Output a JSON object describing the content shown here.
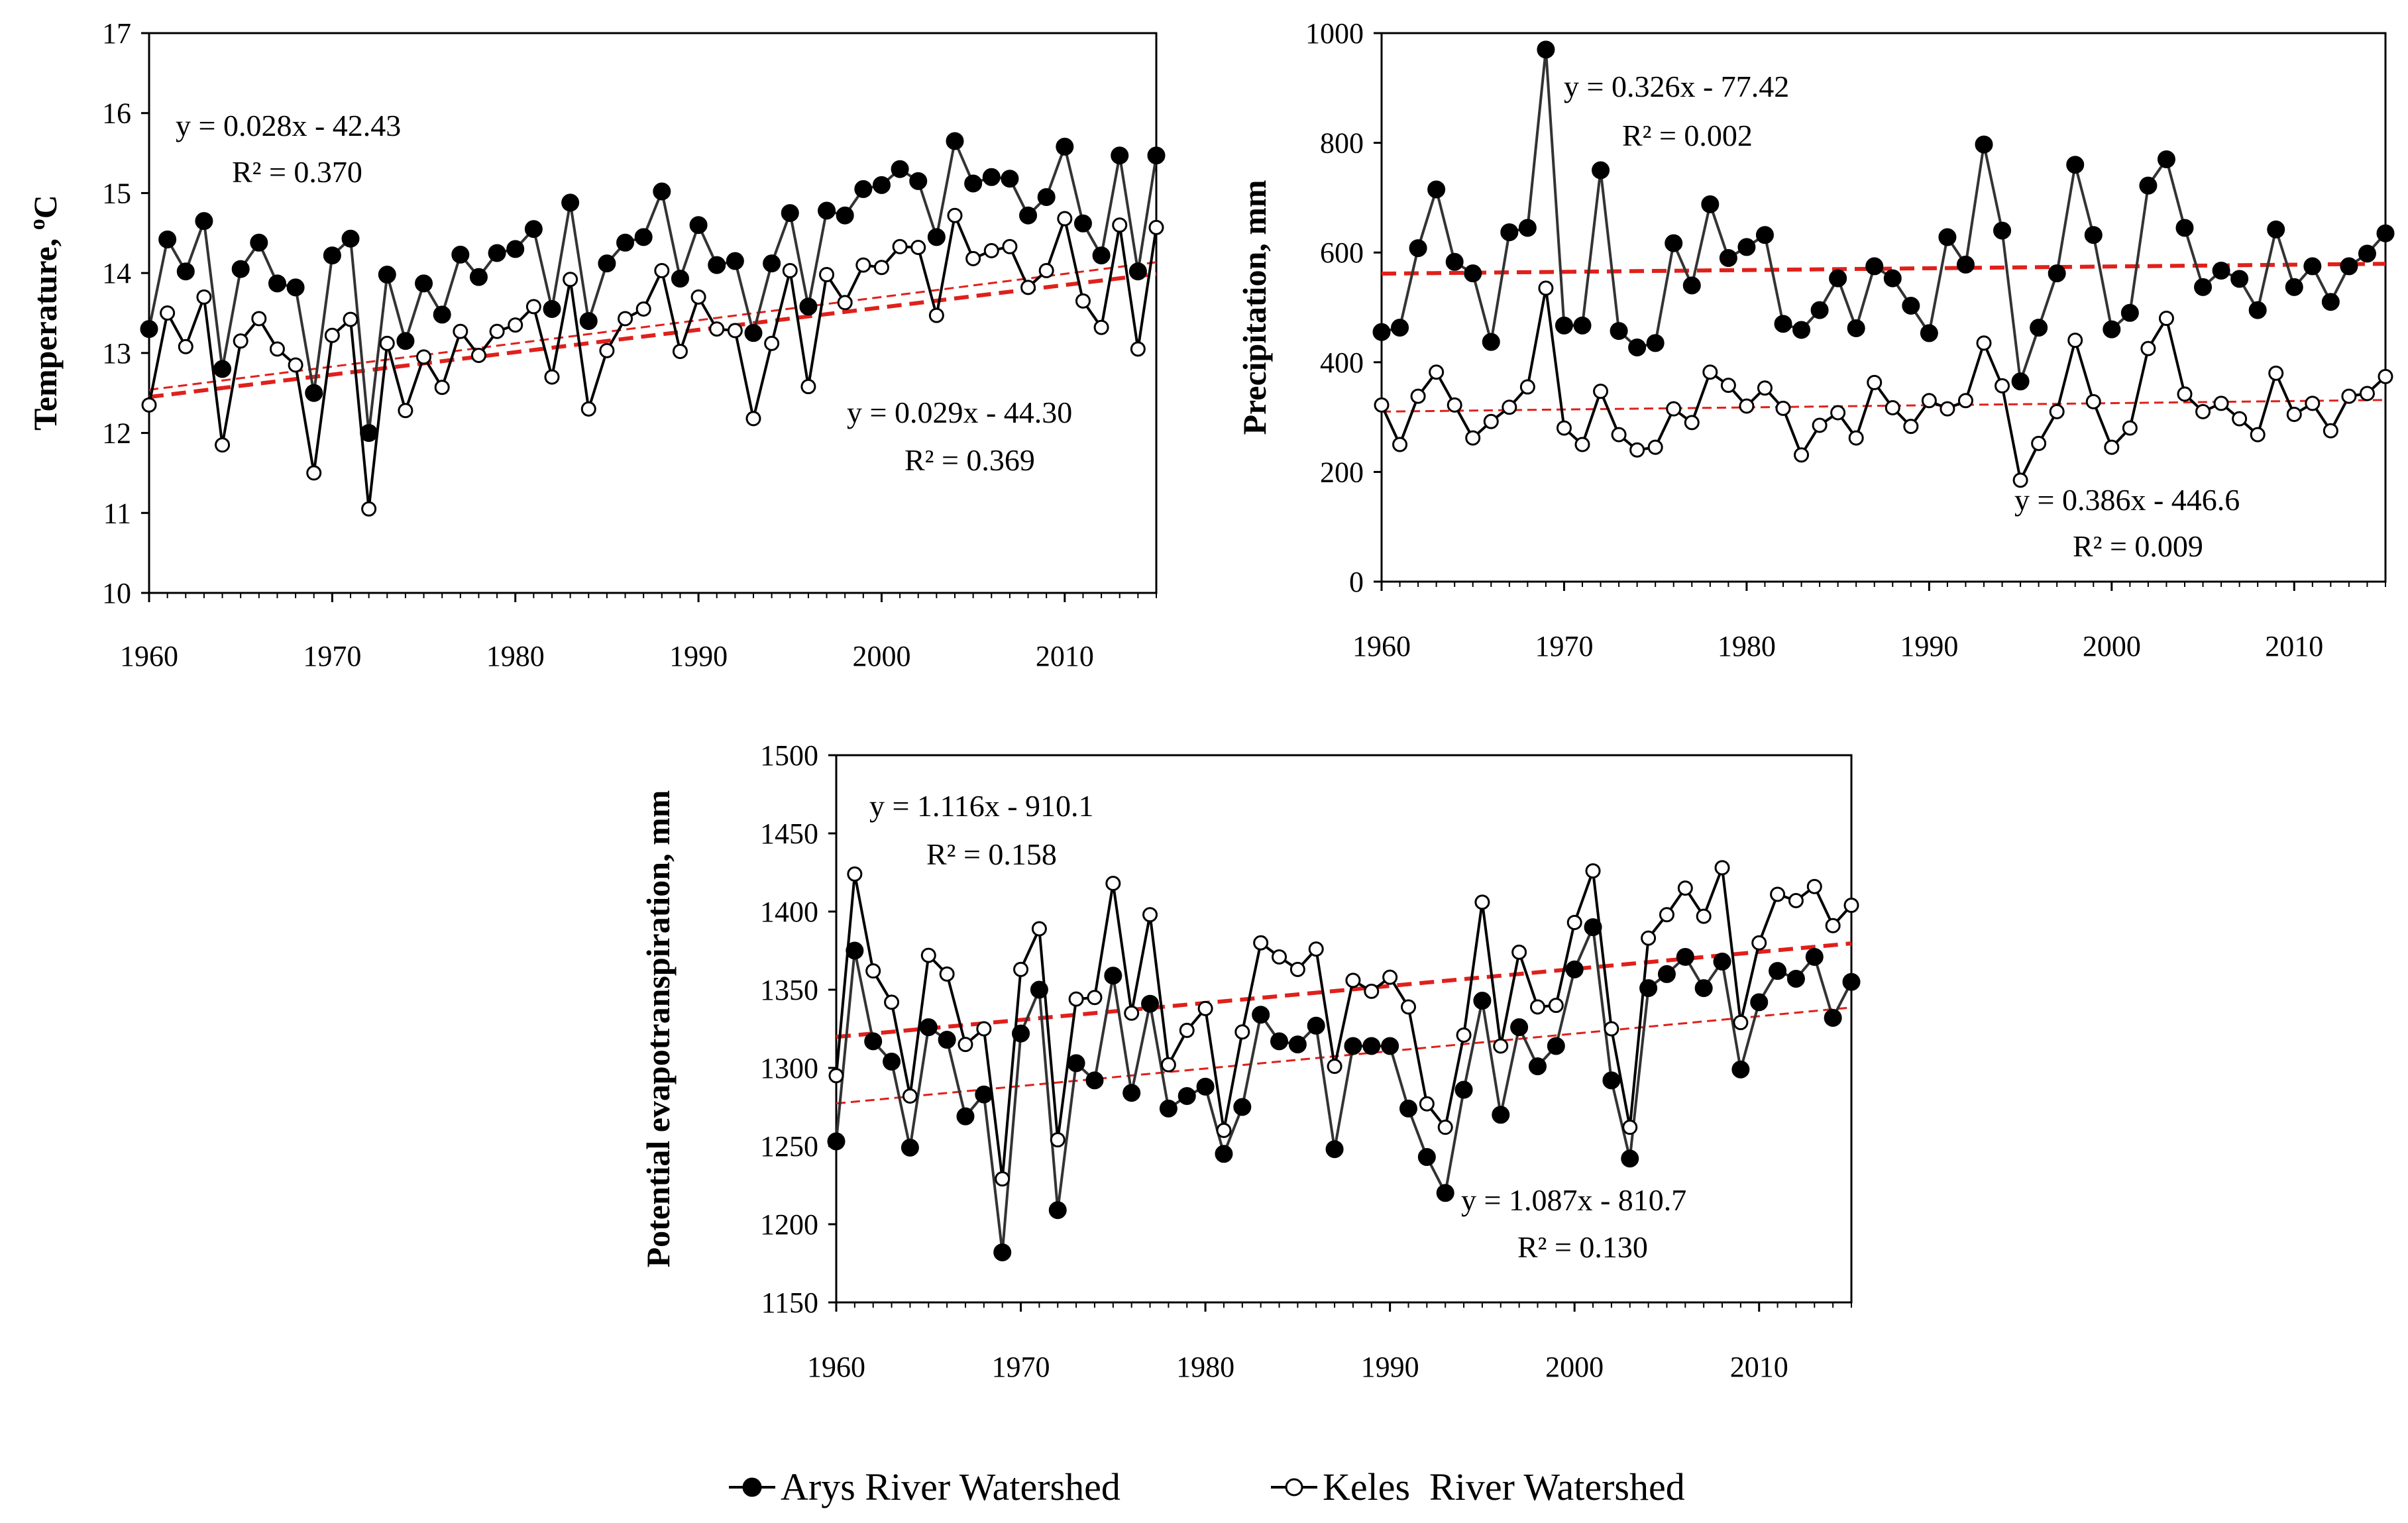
{
  "chart_data": [
    {
      "type": "line",
      "id": "temperature",
      "ylabel": "Temperature, °C",
      "ylabel_base": "Temperature, ",
      "ylabel_sup": "o",
      "ylabel_unit": "C",
      "xlim": [
        1960,
        2015
      ],
      "ylim": [
        10,
        17
      ],
      "xticks": [
        1960,
        1970,
        1980,
        1990,
        2000,
        2010
      ],
      "yticks": [
        10,
        11,
        12,
        13,
        14,
        15,
        16,
        17
      ],
      "x_start": 1960,
      "series": [
        {
          "name": "Arys River Watershed",
          "marker": "filled",
          "values": [
            13.3,
            14.42,
            14.02,
            14.65,
            12.8,
            14.05,
            14.38,
            13.87,
            13.82,
            12.5,
            14.22,
            14.43,
            12.0,
            13.98,
            13.15,
            13.87,
            13.48,
            14.23,
            13.95,
            14.25,
            14.3,
            14.55,
            13.55,
            14.88,
            13.4,
            14.12,
            14.38,
            14.45,
            15.02,
            13.93,
            14.6,
            14.1,
            14.15,
            13.25,
            14.12,
            14.75,
            13.58,
            14.78,
            14.72,
            15.05,
            15.1,
            15.3,
            15.15,
            14.45,
            15.65,
            15.12,
            15.2,
            15.18,
            14.72,
            14.95,
            15.58,
            14.62,
            14.22,
            15.47,
            14.02,
            15.47
          ]
        },
        {
          "name": "Keles  River Watershed",
          "marker": "open",
          "values": [
            12.35,
            13.5,
            13.08,
            13.7,
            11.85,
            13.15,
            13.43,
            13.05,
            12.85,
            11.5,
            13.22,
            13.42,
            11.05,
            13.12,
            12.28,
            12.95,
            12.57,
            13.27,
            12.97,
            13.27,
            13.35,
            13.58,
            12.7,
            13.92,
            12.3,
            13.03,
            13.43,
            13.55,
            14.03,
            13.02,
            13.7,
            13.3,
            13.28,
            12.18,
            13.12,
            14.03,
            12.58,
            13.98,
            13.63,
            14.1,
            14.07,
            14.33,
            14.32,
            13.47,
            14.72,
            14.18,
            14.28,
            14.33,
            13.82,
            14.03,
            14.68,
            13.65,
            13.32,
            14.6,
            13.05,
            14.57
          ]
        }
      ],
      "trendlines": [
        {
          "series": "Arys River Watershed",
          "slope": 0.028,
          "intercept": -42.43,
          "style": "thick-dashed"
        },
        {
          "series": "Keles  River Watershed",
          "slope": 0.029,
          "intercept": -44.3,
          "style": "thin-dashed"
        }
      ],
      "annotations": [
        {
          "eq": "y = 0.028x - 42.43",
          "r2": "R² = 0.370"
        },
        {
          "eq": "y = 0.029x - 44.30",
          "r2": "R² = 0.369"
        }
      ]
    },
    {
      "type": "line",
      "id": "precipitation",
      "ylabel": "Precipitation, mm",
      "xlim": [
        1960,
        2015
      ],
      "ylim": [
        0,
        1000
      ],
      "xticks": [
        1960,
        1970,
        1980,
        1990,
        2000,
        2010
      ],
      "yticks": [
        0,
        200,
        400,
        600,
        800,
        1000
      ],
      "x_start": 1960,
      "series": [
        {
          "name": "Arys River Watershed",
          "marker": "filled",
          "values": [
            455,
            463,
            608,
            715,
            583,
            562,
            437,
            637,
            645,
            970,
            467,
            467,
            750,
            457,
            427,
            435,
            617,
            540,
            688,
            590,
            610,
            632,
            470,
            459,
            495,
            553,
            462,
            575,
            553,
            503,
            453,
            628,
            578,
            797,
            640,
            365,
            463,
            562,
            760,
            632,
            460,
            490,
            722,
            770,
            645,
            537,
            567,
            552,
            495,
            642,
            537,
            575,
            510,
            575,
            598,
            635
          ]
        },
        {
          "name": "Keles  River Watershed",
          "marker": "open",
          "values": [
            322,
            250,
            338,
            382,
            322,
            262,
            292,
            318,
            355,
            535,
            280,
            250,
            347,
            268,
            240,
            245,
            315,
            290,
            382,
            358,
            320,
            353,
            316,
            231,
            285,
            308,
            262,
            363,
            317,
            283,
            330,
            315,
            330,
            435,
            357,
            185,
            252,
            310,
            440,
            328,
            245,
            280,
            425,
            480,
            342,
            310,
            325,
            297,
            268,
            380,
            305,
            325,
            275,
            338,
            343,
            374
          ]
        }
      ],
      "trendlines": [
        {
          "series": "Arys River Watershed",
          "slope": 0.326,
          "intercept": -77.42,
          "style": "thick-dashed"
        },
        {
          "series": "Keles  River Watershed",
          "slope": 0.386,
          "intercept": -446.6,
          "style": "thin-dashed"
        }
      ],
      "annotations": [
        {
          "eq": "y = 0.326x - 77.42",
          "r2": "R² = 0.002"
        },
        {
          "eq": "y = 0.386x - 446.6",
          "r2": "R² = 0.009"
        }
      ]
    },
    {
      "type": "line",
      "id": "pet",
      "ylabel": "Potential evapotranspiration, mm",
      "xlim": [
        1960,
        2015
      ],
      "ylim": [
        1150,
        1500
      ],
      "xticks": [
        1960,
        1970,
        1980,
        1990,
        2000,
        2010
      ],
      "yticks": [
        1150,
        1200,
        1250,
        1300,
        1350,
        1400,
        1450,
        1500
      ],
      "x_start": 1960,
      "series": [
        {
          "name": "Arys River Watershed",
          "marker": "filled",
          "values": [
            1253,
            1375,
            1317,
            1304,
            1249,
            1326,
            1318,
            1269,
            1283,
            1182,
            1322,
            1350,
            1209,
            1303,
            1292,
            1359,
            1284,
            1341,
            1274,
            1282,
            1288,
            1245,
            1275,
            1334,
            1317,
            1315,
            1327,
            1248,
            1314,
            1314,
            1314,
            1274,
            1243,
            1220,
            1286,
            1343,
            1270,
            1326,
            1301,
            1314,
            1363,
            1390,
            1292,
            1242,
            1351,
            1360,
            1371,
            1351,
            1368,
            1299,
            1342,
            1362,
            1357,
            1371,
            1332,
            1355
          ]
        },
        {
          "name": "Keles  River Watershed",
          "marker": "open",
          "values": [
            1295,
            1424,
            1362,
            1342,
            1282,
            1372,
            1360,
            1315,
            1325,
            1229,
            1363,
            1389,
            1254,
            1344,
            1345,
            1418,
            1335,
            1398,
            1302,
            1324,
            1338,
            1260,
            1323,
            1380,
            1371,
            1363,
            1376,
            1301,
            1356,
            1349,
            1358,
            1339,
            1277,
            1262,
            1321,
            1406,
            1314,
            1374,
            1339,
            1340,
            1393,
            1426,
            1325,
            1262,
            1383,
            1398,
            1415,
            1397,
            1428,
            1329,
            1380,
            1411,
            1407,
            1416,
            1391,
            1404
          ]
        }
      ],
      "trendlines": [
        {
          "series": "Keles  River Watershed",
          "slope": 1.116,
          "intercept": -910.1,
          "style": "thin-dashed"
        },
        {
          "series": "Arys River Watershed",
          "slope": 1.087,
          "intercept": -810.7,
          "style": "thick-dashed"
        }
      ],
      "annotations": [
        {
          "eq": "y = 1.116x - 910.1",
          "r2": "R² = 0.158"
        },
        {
          "eq": "y = 1.087x - 810.7",
          "r2": "R² = 0.130"
        }
      ]
    }
  ],
  "legend": {
    "items": [
      {
        "label": "Arys River Watershed",
        "marker": "filled"
      },
      {
        "label": "Keles  River Watershed",
        "marker": "open"
      }
    ]
  }
}
